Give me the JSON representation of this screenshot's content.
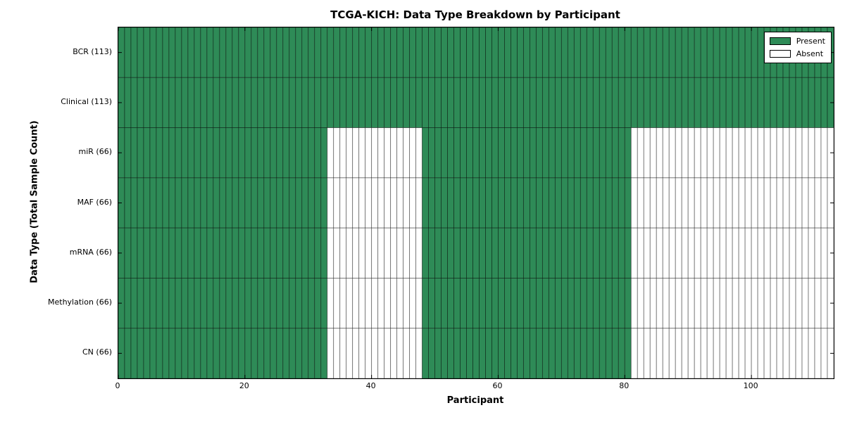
{
  "chart_data": {
    "type": "heatmap",
    "title": "TCGA-KICH: Data Type Breakdown by Participant",
    "xlabel": "Participant",
    "ylabel": "Data Type (Total Sample Count)",
    "xlim": [
      0,
      113
    ],
    "n_participants": 113,
    "x_ticks": [
      0,
      20,
      40,
      60,
      80,
      100
    ],
    "grid": true,
    "legend_position": "upper right",
    "legend": [
      {
        "label": "Present",
        "color": "#2e8b57"
      },
      {
        "label": "Absent",
        "color": "#ffffff"
      }
    ],
    "rows": [
      {
        "name": "BCR",
        "label": "BCR (113)",
        "count": 113,
        "present_ranges": [
          [
            0,
            113
          ]
        ]
      },
      {
        "name": "Clinical",
        "label": "Clinical (113)",
        "count": 113,
        "present_ranges": [
          [
            0,
            113
          ]
        ]
      },
      {
        "name": "miR",
        "label": "miR (66)",
        "count": 66,
        "present_ranges": [
          [
            0,
            33
          ],
          [
            48,
            81
          ]
        ]
      },
      {
        "name": "MAF",
        "label": "MAF (66)",
        "count": 66,
        "present_ranges": [
          [
            0,
            33
          ],
          [
            48,
            81
          ]
        ]
      },
      {
        "name": "mRNA",
        "label": "mRNA (66)",
        "count": 66,
        "present_ranges": [
          [
            0,
            33
          ],
          [
            48,
            81
          ]
        ]
      },
      {
        "name": "Methylation",
        "label": "Methylation (66)",
        "count": 66,
        "present_ranges": [
          [
            0,
            33
          ],
          [
            48,
            81
          ]
        ]
      },
      {
        "name": "CN",
        "label": "CN (66)",
        "count": 66,
        "present_ranges": [
          [
            0,
            33
          ],
          [
            48,
            81
          ]
        ]
      }
    ],
    "colors": {
      "present": "#2e8b57",
      "absent": "#ffffff",
      "cell_edge": "#000000",
      "axis": "#000000"
    }
  }
}
